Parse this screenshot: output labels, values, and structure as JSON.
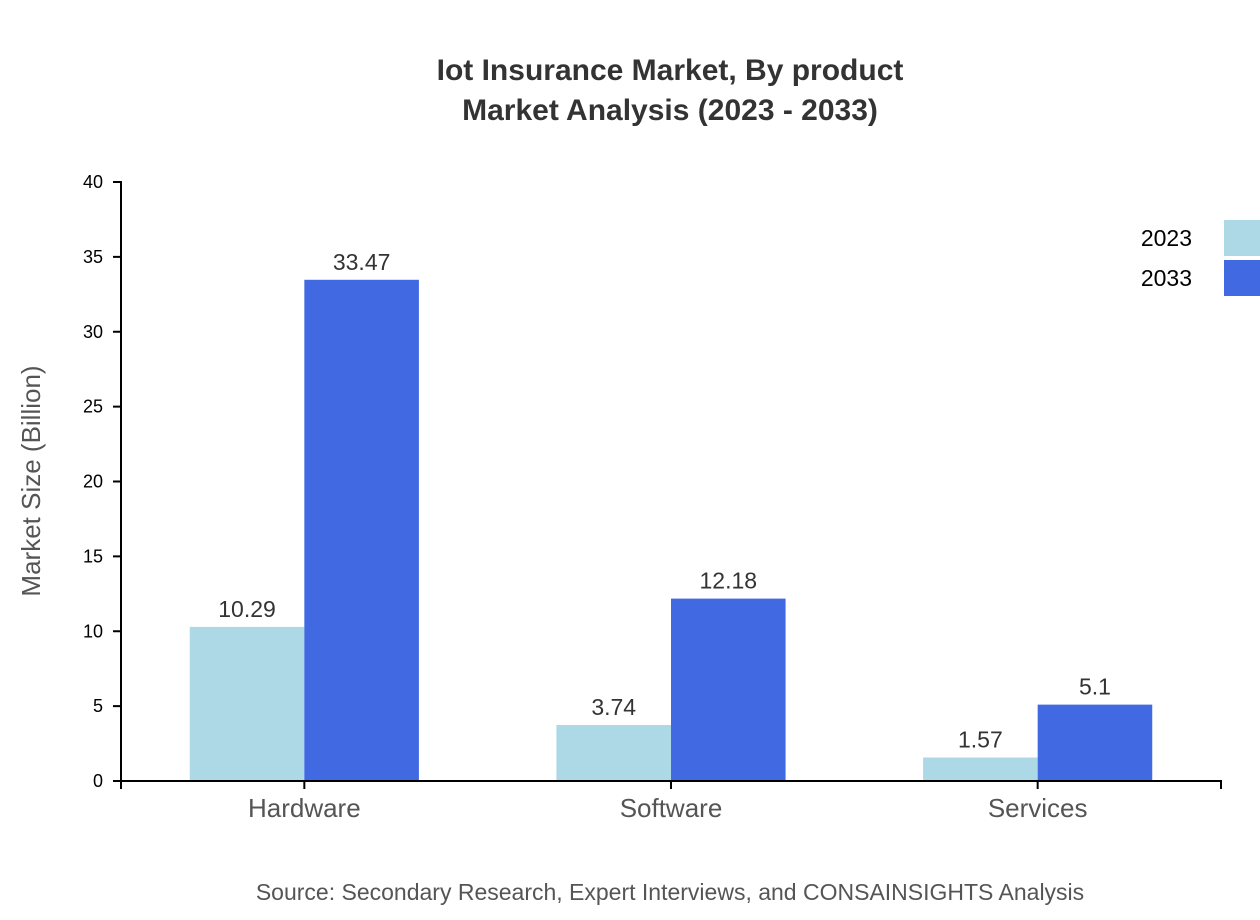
{
  "chart_data": {
    "type": "bar",
    "title_lines": [
      "Iot Insurance Market, By product",
      "Market Analysis (2023 - 2033)"
    ],
    "xlabel": "",
    "ylabel": "Market Size (Billion)",
    "categories": [
      "Hardware",
      "Software",
      "Services"
    ],
    "series": [
      {
        "name": "2023",
        "color": "#ADD8E6",
        "values": [
          10.29,
          3.74,
          1.57
        ]
      },
      {
        "name": "2033",
        "color": "#4169E1",
        "values": [
          33.47,
          12.18,
          5.1
        ]
      }
    ],
    "ylim": [
      0,
      40
    ],
    "yticks": [
      0,
      5,
      10,
      15,
      20,
      25,
      30,
      35,
      40
    ],
    "grid": false,
    "legend_position": "top-right",
    "source": "Source: Secondary Research, Expert Interviews, and CONSAINSIGHTS Analysis"
  }
}
